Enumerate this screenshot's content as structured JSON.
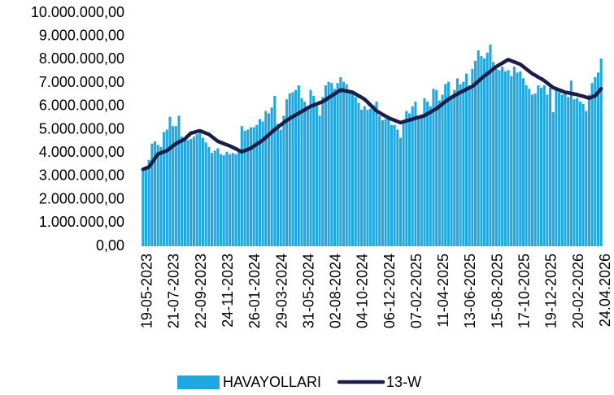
{
  "chart_data": {
    "type": "bar",
    "categories": [
      "19-05-2023",
      null,
      null,
      null,
      null,
      null,
      null,
      null,
      null,
      "21-07-2023",
      null,
      null,
      null,
      null,
      null,
      null,
      null,
      null,
      "22-09-2023",
      null,
      null,
      null,
      null,
      null,
      null,
      null,
      null,
      "24-11-2023",
      null,
      null,
      null,
      null,
      null,
      null,
      null,
      null,
      "26-01-2024",
      null,
      null,
      null,
      null,
      null,
      null,
      null,
      null,
      "29-03-2024",
      null,
      null,
      null,
      null,
      null,
      null,
      null,
      null,
      "31-05-2024",
      null,
      null,
      null,
      null,
      null,
      null,
      null,
      null,
      "02-08-2024",
      null,
      null,
      null,
      null,
      null,
      null,
      null,
      null,
      "04-10-2024",
      null,
      null,
      null,
      null,
      null,
      null,
      null,
      null,
      "06-12-2024",
      null,
      null,
      null,
      null,
      null,
      null,
      null,
      null,
      "07-02-2025",
      null,
      null,
      null,
      null,
      null,
      null,
      null,
      null,
      "11-04-2025",
      null,
      null,
      null,
      null,
      null,
      null,
      null,
      null,
      "13-06-2025",
      null,
      null,
      null,
      null,
      null,
      null,
      null,
      null,
      "15-08-2025",
      null,
      null,
      null,
      null,
      null,
      null,
      null,
      null,
      "17-10-2025",
      null,
      null,
      null,
      null,
      null,
      null,
      null,
      null,
      "19-12-2025",
      null,
      null,
      null,
      null,
      null,
      null,
      null,
      null,
      "20-02-2026",
      null,
      null,
      null,
      null,
      null,
      null,
      null,
      null,
      "24.04.2026"
    ],
    "series": [
      {
        "name": "HAVAYOLLARI",
        "type": "bar",
        "color": "#20a7e0",
        "values": [
          3300000,
          3350000,
          3700000,
          4400000,
          4500000,
          4350000,
          4250000,
          4900000,
          5000000,
          5550000,
          5150000,
          5150000,
          5600000,
          4700000,
          4600000,
          4550000,
          4600000,
          4700000,
          4800000,
          4850000,
          4650000,
          4450000,
          4250000,
          4000000,
          4100000,
          4200000,
          3950000,
          3900000,
          4050000,
          3950000,
          4000000,
          3950000,
          4100000,
          5150000,
          4950000,
          5000000,
          5100000,
          5100000,
          5200000,
          5450000,
          5350000,
          5800000,
          5700000,
          5950000,
          6450000,
          5250000,
          5000000,
          5600000,
          6300000,
          6550000,
          6600000,
          6700000,
          6900000,
          6350000,
          6200000,
          6000000,
          6700000,
          6450000,
          6150000,
          5600000,
          6400000,
          6900000,
          7050000,
          7000000,
          6750000,
          7000000,
          7250000,
          7050000,
          6950000,
          6700000,
          6550000,
          6400000,
          6150000,
          5850000,
          6000000,
          5850000,
          5900000,
          6050000,
          6200000,
          5600000,
          5400000,
          5450000,
          5600000,
          5200000,
          5200000,
          5000000,
          4650000,
          5350000,
          5800000,
          5700000,
          6000000,
          6200000,
          5550000,
          5650000,
          6350000,
          6200000,
          6000000,
          6750000,
          6700000,
          6250000,
          6500000,
          6950000,
          7050000,
          6450000,
          6700000,
          7200000,
          6950000,
          7050000,
          7400000,
          6900000,
          7600000,
          7950000,
          8400000,
          8150000,
          8050000,
          8300000,
          8650000,
          7900000,
          7600000,
          7550000,
          7700000,
          7500000,
          7550000,
          7300000,
          7700000,
          7450000,
          7500000,
          7200000,
          6900000,
          6750000,
          6500000,
          6550000,
          6900000,
          6800000,
          6900000,
          6500000,
          6800000,
          5750000,
          6800000,
          6600000,
          6500000,
          6550000,
          6400000,
          7100000,
          6300000,
          6350000,
          6200000,
          6100000,
          5800000,
          6500000,
          7000000,
          7250000,
          7450000,
          8050000
        ]
      },
      {
        "name": "13-W",
        "type": "line",
        "color": "#1c1e4a",
        "values": [
          3300000,
          3350000,
          3400000,
          3580000,
          3770000,
          3950000,
          4000000,
          4050000,
          4100000,
          4200000,
          4300000,
          4400000,
          4470000,
          4530000,
          4600000,
          4730000,
          4850000,
          4880000,
          4920000,
          4950000,
          4900000,
          4850000,
          4800000,
          4700000,
          4600000,
          4500000,
          4450000,
          4400000,
          4350000,
          4300000,
          4240000,
          4180000,
          4110000,
          4050000,
          4100000,
          4150000,
          4200000,
          4290000,
          4380000,
          4460000,
          4550000,
          4660000,
          4780000,
          4890000,
          5000000,
          5100000,
          5200000,
          5300000,
          5400000,
          5480000,
          5550000,
          5630000,
          5700000,
          5780000,
          5850000,
          5930000,
          6000000,
          6050000,
          6100000,
          6150000,
          6200000,
          6280000,
          6370000,
          6450000,
          6530000,
          6620000,
          6700000,
          6680000,
          6650000,
          6630000,
          6600000,
          6530000,
          6450000,
          6380000,
          6300000,
          6180000,
          6050000,
          5930000,
          5800000,
          5730000,
          5650000,
          5580000,
          5500000,
          5450000,
          5400000,
          5350000,
          5300000,
          5340000,
          5380000,
          5410000,
          5450000,
          5490000,
          5530000,
          5560000,
          5600000,
          5680000,
          5750000,
          5830000,
          5900000,
          6000000,
          6100000,
          6200000,
          6300000,
          6380000,
          6450000,
          6530000,
          6600000,
          6660000,
          6730000,
          6790000,
          6850000,
          6960000,
          7080000,
          7190000,
          7300000,
          7400000,
          7500000,
          7600000,
          7700000,
          7780000,
          7850000,
          7930000,
          8000000,
          7950000,
          7900000,
          7850000,
          7800000,
          7700000,
          7600000,
          7500000,
          7400000,
          7330000,
          7250000,
          7180000,
          7100000,
          7000000,
          6900000,
          6800000,
          6750000,
          6700000,
          6650000,
          6600000,
          6580000,
          6550000,
          6530000,
          6500000,
          6460000,
          6430000,
          6390000,
          6350000,
          6400000,
          6450000,
          6600000,
          6750000
        ]
      }
    ],
    "ylim": [
      0,
      10000000
    ],
    "yticks": [
      {
        "value": 0,
        "label": "0,00"
      },
      {
        "value": 1000000,
        "label": "1.000.000,00"
      },
      {
        "value": 2000000,
        "label": "2.000.000,00"
      },
      {
        "value": 3000000,
        "label": "3.000.000,00"
      },
      {
        "value": 4000000,
        "label": "4.000.000,00"
      },
      {
        "value": 5000000,
        "label": "5.000.000,00"
      },
      {
        "value": 6000000,
        "label": "6.000.000,00"
      },
      {
        "value": 7000000,
        "label": "7.000.000,00"
      },
      {
        "value": 8000000,
        "label": "8.000.000,00"
      },
      {
        "value": 9000000,
        "label": "9.000.000,00"
      },
      {
        "value": 10000000,
        "label": "10.000.000,00"
      }
    ],
    "grid": false,
    "legend": "bottom"
  }
}
